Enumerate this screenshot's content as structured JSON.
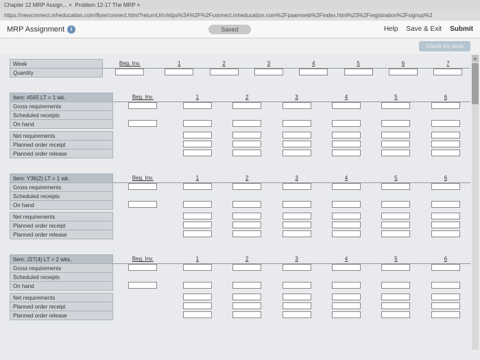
{
  "browser": {
    "tab1": "Chapter 12 MRP Assign... ×",
    "tab2": "Problem 12-17 The MRP ×",
    "url": "https://newconnect.mheducation.com/flow/connect.html?returnUrl=https%3A%2F%2Fconnect.mheducation.com%2Fpaamweb%2Findex.html%23%2Fregistration%2Fsignup%2"
  },
  "header": {
    "title": "MRP Assignment",
    "saved": "Saved",
    "help": "Help",
    "saveexit": "Save & Exit",
    "submit": "Submit",
    "check": "Check my work"
  },
  "topTable": {
    "rows": [
      "Week",
      "Quantity"
    ],
    "beg": "Beg. Inv.",
    "cols": [
      "1",
      "2",
      "3",
      "4",
      "5",
      "6",
      "7"
    ]
  },
  "items": [
    {
      "header": "Item: #565   LT = 1 wk.",
      "beg": "Beg. Inv.",
      "cols": [
        "1",
        "2",
        "3",
        "4",
        "5",
        "6"
      ],
      "rows": [
        "Gross requirements",
        "Scheduled receipts",
        "On hand",
        "Net requirements",
        "Planned order receipt",
        "Planned order release"
      ]
    },
    {
      "header": "Item: Y36(2)   LT = 1 wk.",
      "beg": "Beg. Inv.",
      "cols": [
        "1",
        "2",
        "3",
        "4",
        "5",
        "6"
      ],
      "rows": [
        "Gross requirements",
        "Scheduled receipts",
        "On hand",
        "Net requirements",
        "Planned order receipt",
        "Planned order release"
      ]
    },
    {
      "header": "Item: J27(4)   LT = 2 wks.",
      "beg": "Beg. Inv.",
      "cols": [
        "1",
        "2",
        "3",
        "4",
        "5",
        "6"
      ],
      "rows": [
        "Gross requirements",
        "Scheduled receipts",
        "On hand",
        "Net requirements",
        "Planned order receipt",
        "Planned order release"
      ]
    }
  ],
  "colors": {
    "bg": "#e8eaed",
    "rowlabel": "#d0d5da",
    "rowlabel_dark": "#b8c0c8",
    "border": "#aab0b8"
  }
}
